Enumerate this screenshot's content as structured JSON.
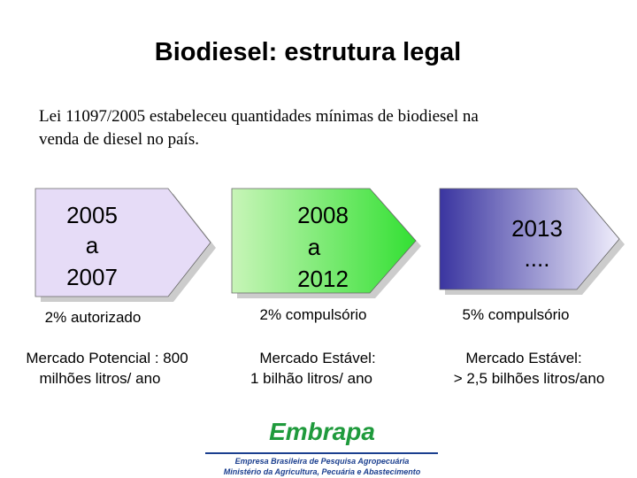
{
  "title": "Biodiesel: estrutura legal",
  "intro": [
    "Lei 11097/2005 estabeleceu quantidades mínimas de biodiesel na",
    "venda  de diesel no país."
  ],
  "stages": [
    {
      "period": [
        "2005",
        "a",
        "2007"
      ],
      "status": "2% autorizado",
      "market": [
        "Mercado Potencial : 800",
        "milhões litros/ ano"
      ]
    },
    {
      "period": [
        "2008",
        "a",
        "2012"
      ],
      "status": "2% compulsório",
      "market": [
        "Mercado Estável:",
        "1 bilhão litros/ ano"
      ]
    },
    {
      "period": [
        "2013",
        "...."
      ],
      "status": "5% compulsório",
      "market": [
        "Mercado Estável:",
        "> 2,5 bilhões litros/ano"
      ]
    }
  ],
  "logo": {
    "name": "Embrapa",
    "lines": [
      "Empresa Brasileira de Pesquisa Agropecuária",
      "Ministério da Agricultura, Pecuária e Abastecimento"
    ]
  }
}
